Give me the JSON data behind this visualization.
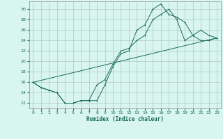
{
  "xlabel": "Humidex (Indice chaleur)",
  "background_color": "#d8f5f0",
  "grid_color": "#b0c8c0",
  "line_color": "#1a6b5a",
  "xlim": [
    -0.5,
    23.5
  ],
  "ylim": [
    11,
    31.5
  ],
  "yticks": [
    12,
    14,
    16,
    18,
    20,
    22,
    24,
    26,
    28,
    30
  ],
  "xticks": [
    0,
    1,
    2,
    3,
    4,
    5,
    6,
    7,
    8,
    9,
    10,
    11,
    12,
    13,
    14,
    15,
    16,
    17,
    18,
    19,
    20,
    21,
    22,
    23
  ],
  "curve1_x": [
    0,
    1,
    2,
    3,
    4,
    5,
    6,
    7,
    8,
    9,
    10,
    11,
    12,
    13,
    14,
    15,
    16,
    17,
    18,
    19,
    20,
    21,
    22,
    23
  ],
  "curve1_y": [
    16,
    15,
    14.5,
    14,
    12,
    12,
    12.5,
    12.5,
    12.5,
    15.5,
    19,
    21.5,
    22,
    26,
    27,
    30,
    31,
    29,
    28.5,
    27.5,
    25,
    26,
    25,
    24.5
  ],
  "curve2_x": [
    0,
    1,
    2,
    3,
    4,
    5,
    6,
    7,
    8,
    9,
    10,
    11,
    12,
    13,
    14,
    15,
    16,
    17,
    18,
    19,
    20,
    21,
    22,
    23
  ],
  "curve2_y": [
    16,
    15,
    14.5,
    14,
    12,
    12,
    12.5,
    12.5,
    15.5,
    16.5,
    19.5,
    22,
    22.5,
    24,
    25,
    28,
    29,
    30,
    28,
    24,
    25,
    24,
    24,
    24.5
  ],
  "curve3_x": [
    0,
    23
  ],
  "curve3_y": [
    16,
    24.5
  ]
}
